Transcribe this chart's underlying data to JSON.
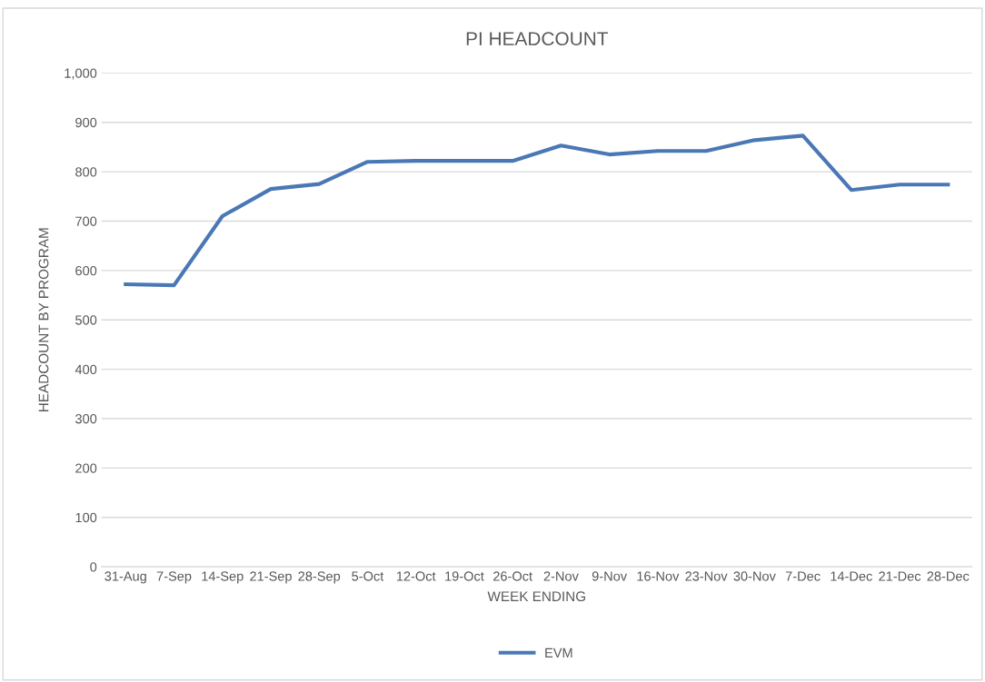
{
  "chart_data": {
    "type": "line",
    "title": "PI HEADCOUNT",
    "xlabel": "WEEK ENDING",
    "ylabel": "HEADCOUNT BY PROGRAM",
    "categories": [
      "31-Aug",
      "7-Sep",
      "14-Sep",
      "21-Sep",
      "28-Sep",
      "5-Oct",
      "12-Oct",
      "19-Oct",
      "26-Oct",
      "2-Nov",
      "9-Nov",
      "16-Nov",
      "23-Nov",
      "30-Nov",
      "7-Dec",
      "14-Dec",
      "21-Dec",
      "28-Dec"
    ],
    "series": [
      {
        "name": "EVM",
        "color": "#4a78b5",
        "values": [
          572,
          570,
          710,
          765,
          775,
          820,
          822,
          822,
          822,
          853,
          835,
          842,
          842,
          864,
          873,
          763,
          774,
          774
        ]
      }
    ],
    "ylim": [
      0,
      1000
    ],
    "yticks": [
      0,
      100,
      200,
      300,
      400,
      500,
      600,
      700,
      800,
      900,
      {
        "value": 1000,
        "label": "1,000"
      }
    ],
    "grid": "y",
    "legend": "bottom",
    "marker": "none",
    "line_style": "solid"
  }
}
